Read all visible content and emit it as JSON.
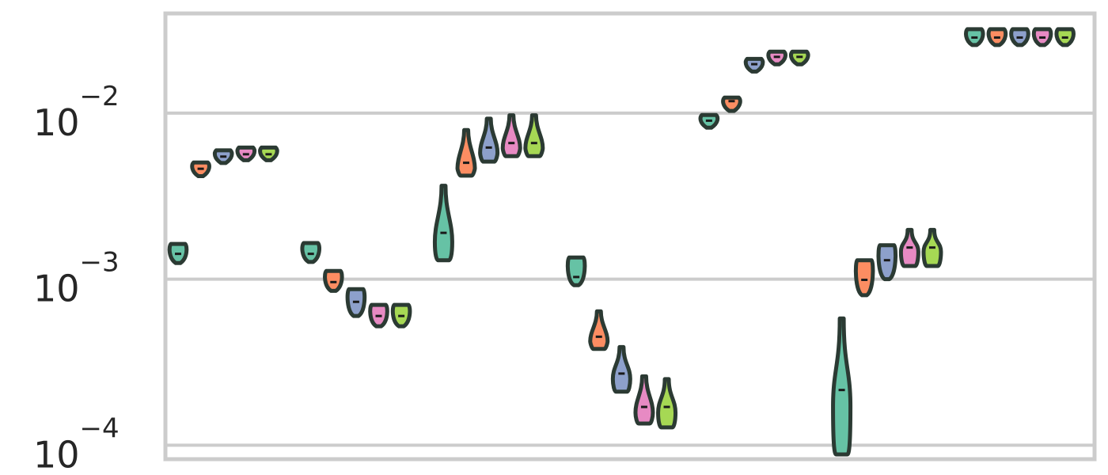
{
  "chart_data": {
    "type": "violin",
    "title": "",
    "xlabel": "",
    "ylabel": "",
    "y_scale": "log",
    "ylim": [
      8.24e-05,
      0.0398
    ],
    "y_ticks": [
      {
        "value": 0.0001,
        "base": "10",
        "exp": "−4"
      },
      {
        "value": 0.001,
        "base": "10",
        "exp": "−3"
      },
      {
        "value": 0.01,
        "base": "10",
        "exp": "−2"
      }
    ],
    "grid": true,
    "palette": [
      "#66c2a5",
      "#fc8d62",
      "#8da0cb",
      "#e78ac3",
      "#a6d854"
    ],
    "edge_color": "#2b3a33",
    "groups": [
      {
        "violins": [
          {
            "median": 0.00142,
            "min": 0.00125,
            "max": 0.00163
          },
          {
            "median": 0.00462,
            "min": 0.00417,
            "max": 0.00504
          },
          {
            "median": 0.00547,
            "min": 0.00505,
            "max": 0.00591
          },
          {
            "median": 0.00565,
            "min": 0.00527,
            "max": 0.00612
          },
          {
            "median": 0.00565,
            "min": 0.00527,
            "max": 0.00612
          }
        ]
      },
      {
        "violins": [
          {
            "median": 0.00142,
            "min": 0.00127,
            "max": 0.00165
          },
          {
            "median": 0.00096,
            "min": 0.00085,
            "max": 0.00112
          },
          {
            "median": 0.00073,
            "min": 0.0006,
            "max": 0.00087
          },
          {
            "median": 0.0006,
            "min": 0.00052,
            "max": 0.0007
          },
          {
            "median": 0.0006,
            "min": 0.00052,
            "max": 0.0007
          }
        ]
      },
      {
        "violins": [
          {
            "median": 0.0019,
            "min": 0.0013,
            "max": 0.00365
          },
          {
            "median": 0.00502,
            "min": 0.0042,
            "max": 0.0079
          },
          {
            "median": 0.0062,
            "min": 0.0051,
            "max": 0.00925
          },
          {
            "median": 0.0066,
            "min": 0.0055,
            "max": 0.0097
          },
          {
            "median": 0.0066,
            "min": 0.0055,
            "max": 0.0097
          }
        ]
      },
      {
        "violins": [
          {
            "median": 0.00103,
            "min": 0.00092,
            "max": 0.00135
          },
          {
            "median": 0.00045,
            "min": 0.00038,
            "max": 0.00064
          },
          {
            "median": 0.00027,
            "min": 0.00021,
            "max": 0.00039
          },
          {
            "median": 0.00017,
            "min": 0.000135,
            "max": 0.00026
          },
          {
            "median": 0.00017,
            "min": 0.000128,
            "max": 0.00025
          }
        ]
      },
      {
        "violins": [
          {
            "median": 0.009,
            "min": 0.0082,
            "max": 0.0097
          },
          {
            "median": 0.0118,
            "min": 0.0103,
            "max": 0.0124
          },
          {
            "median": 0.0197,
            "min": 0.0178,
            "max": 0.0212
          },
          {
            "median": 0.0218,
            "min": 0.0198,
            "max": 0.0233
          },
          {
            "median": 0.0218,
            "min": 0.0198,
            "max": 0.0233
          }
        ]
      },
      {
        "violins": [
          {
            "median": 0.000215,
            "min": 8.8e-05,
            "max": 0.00058
          },
          {
            "median": 0.00099,
            "min": 0.0008,
            "max": 0.0013
          },
          {
            "median": 0.0013,
            "min": 0.001,
            "max": 0.0016
          },
          {
            "median": 0.00155,
            "min": 0.0012,
            "max": 0.00198
          },
          {
            "median": 0.00155,
            "min": 0.0012,
            "max": 0.00198
          }
        ]
      },
      {
        "violins": [
          {
            "median": 0.0285,
            "min": 0.0257,
            "max": 0.032
          },
          {
            "median": 0.0285,
            "min": 0.0257,
            "max": 0.032
          },
          {
            "median": 0.0285,
            "min": 0.0257,
            "max": 0.032
          },
          {
            "median": 0.0285,
            "min": 0.0257,
            "max": 0.032
          },
          {
            "median": 0.0285,
            "min": 0.0257,
            "max": 0.032
          }
        ]
      }
    ]
  }
}
